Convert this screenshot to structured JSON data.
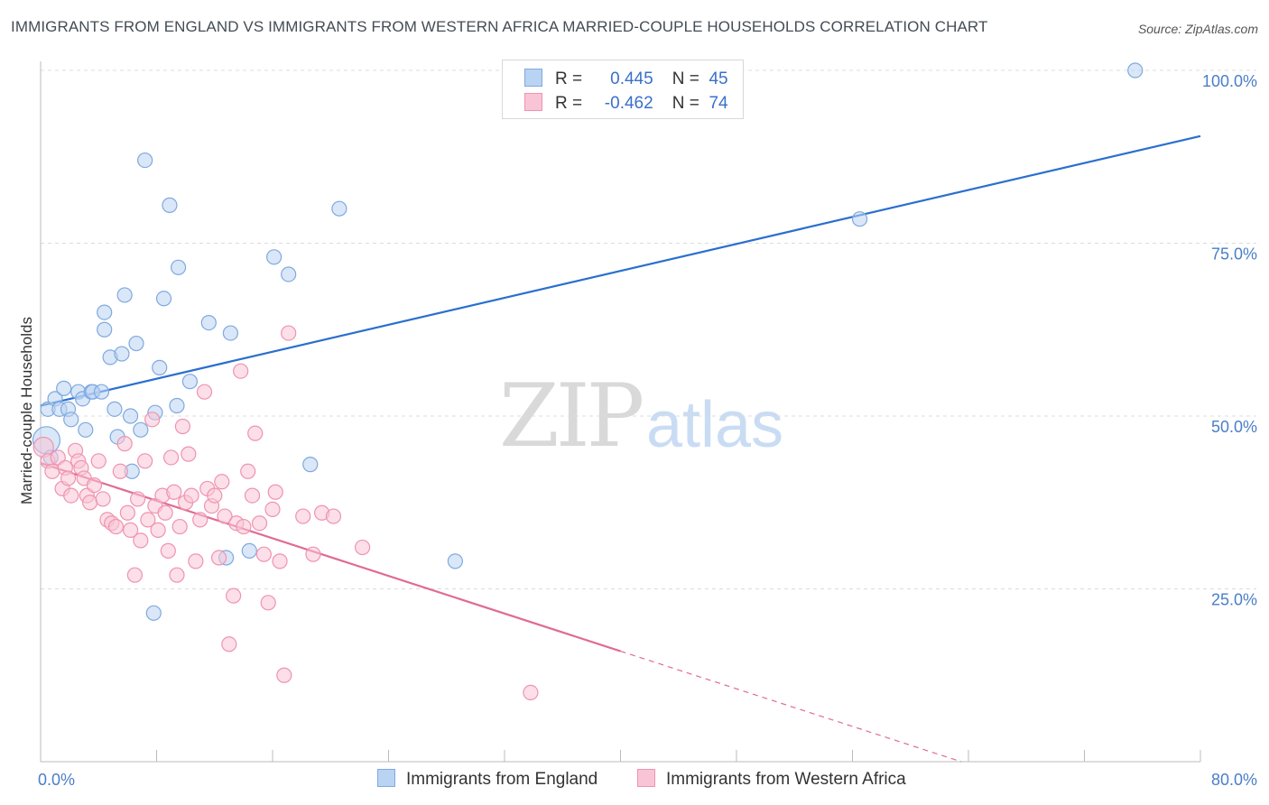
{
  "title": "IMMIGRANTS FROM ENGLAND VS IMMIGRANTS FROM WESTERN AFRICA MARRIED-COUPLE HOUSEHOLDS CORRELATION CHART",
  "source": "Source: ZipAtlas.com",
  "watermark": {
    "zip": "ZIP",
    "atlas": "atlas"
  },
  "legend": {
    "rows": [
      {
        "r_label": "R =",
        "r_value": "0.445",
        "n_label": "N =",
        "n_value": "45"
      },
      {
        "r_label": "R =",
        "r_value": "-0.462",
        "n_label": "N =",
        "n_value": "74"
      }
    ]
  },
  "colors": {
    "england_fill": "#b9d3f3",
    "england_stroke": "#7fa9df",
    "england_line": "#2a6fcf",
    "wafrica_fill": "#f9c5d6",
    "wafrica_stroke": "#ef93b0",
    "wafrica_line": "#e06b95",
    "grid": "#dcdcdc",
    "tick_text": "#4a7ec9"
  },
  "chart_data": {
    "type": "scatter",
    "title": "IMMIGRANTS FROM ENGLAND VS IMMIGRANTS FROM WESTERN AFRICA MARRIED-COUPLE HOUSEHOLDS CORRELATION CHART",
    "xlabel": "",
    "ylabel": "Married-couple Households",
    "xlim": [
      0,
      80
    ],
    "ylim": [
      0,
      102
    ],
    "x_tick_labels": [
      "0.0%",
      "80.0%"
    ],
    "y_ticks": [
      25,
      50,
      75,
      100
    ],
    "y_tick_labels": [
      "25.0%",
      "50.0%",
      "75.0%",
      "100.0%"
    ],
    "grid": true,
    "series": [
      {
        "name": "Immigrants from England",
        "r": 0.445,
        "n": 45,
        "trend": {
          "x0": 0,
          "y0": 51.5,
          "x1": 80,
          "y1": 90.5,
          "dashed_from": null
        },
        "points": [
          [
            0.4,
            46.5
          ],
          [
            0.5,
            51
          ],
          [
            0.7,
            44
          ],
          [
            1.0,
            52.5
          ],
          [
            1.3,
            51
          ],
          [
            1.6,
            54
          ],
          [
            1.9,
            51
          ],
          [
            2.1,
            49.5
          ],
          [
            2.6,
            53.5
          ],
          [
            2.9,
            52.5
          ],
          [
            3.1,
            48
          ],
          [
            3.5,
            53.5
          ],
          [
            3.6,
            53.5
          ],
          [
            4.2,
            53.5
          ],
          [
            4.4,
            65
          ],
          [
            4.4,
            62.5
          ],
          [
            4.8,
            58.5
          ],
          [
            5.1,
            51
          ],
          [
            5.3,
            47
          ],
          [
            5.6,
            59
          ],
          [
            5.8,
            67.5
          ],
          [
            6.2,
            50
          ],
          [
            6.3,
            42
          ],
          [
            6.6,
            60.5
          ],
          [
            6.9,
            48
          ],
          [
            7.2,
            87
          ],
          [
            7.8,
            21.5
          ],
          [
            7.9,
            50.5
          ],
          [
            8.2,
            57
          ],
          [
            8.5,
            67
          ],
          [
            8.9,
            80.5
          ],
          [
            9.4,
            51.5
          ],
          [
            9.5,
            71.5
          ],
          [
            10.3,
            55
          ],
          [
            11.6,
            63.5
          ],
          [
            12.8,
            29.5
          ],
          [
            13.1,
            62
          ],
          [
            14.4,
            30.5
          ],
          [
            16.1,
            73
          ],
          [
            17.1,
            70.5
          ],
          [
            18.6,
            43
          ],
          [
            20.6,
            80
          ],
          [
            28.6,
            29
          ],
          [
            56.5,
            78.5
          ],
          [
            75.5,
            100
          ]
        ]
      },
      {
        "name": "Immigrants from Western Africa",
        "r": -0.462,
        "n": 74,
        "trend": {
          "x0": 0,
          "y0": 43.2,
          "x1": 63.5,
          "y1": 0,
          "dashed_from": 40
        },
        "points": [
          [
            0.2,
            45.5
          ],
          [
            0.5,
            43.5
          ],
          [
            0.8,
            42
          ],
          [
            1.2,
            44
          ],
          [
            1.5,
            39.5
          ],
          [
            1.7,
            42.5
          ],
          [
            1.9,
            41
          ],
          [
            2.1,
            38.5
          ],
          [
            2.4,
            45
          ],
          [
            2.6,
            43.5
          ],
          [
            2.8,
            42.5
          ],
          [
            3.0,
            41
          ],
          [
            3.2,
            38.5
          ],
          [
            3.4,
            37.5
          ],
          [
            3.7,
            40
          ],
          [
            4.0,
            43.5
          ],
          [
            4.3,
            38
          ],
          [
            4.6,
            35
          ],
          [
            4.9,
            34.5
          ],
          [
            5.2,
            34
          ],
          [
            5.5,
            42
          ],
          [
            5.8,
            46
          ],
          [
            6.0,
            36
          ],
          [
            6.2,
            33.5
          ],
          [
            6.5,
            27
          ],
          [
            6.7,
            38
          ],
          [
            6.9,
            32
          ],
          [
            7.2,
            43.5
          ],
          [
            7.4,
            35
          ],
          [
            7.7,
            49.5
          ],
          [
            7.9,
            37
          ],
          [
            8.1,
            33.5
          ],
          [
            8.4,
            38.5
          ],
          [
            8.6,
            36
          ],
          [
            8.8,
            30.5
          ],
          [
            9.0,
            44
          ],
          [
            9.2,
            39
          ],
          [
            9.4,
            27
          ],
          [
            9.6,
            34
          ],
          [
            9.8,
            48.5
          ],
          [
            10.0,
            37.5
          ],
          [
            10.2,
            44.5
          ],
          [
            10.4,
            38.5
          ],
          [
            10.7,
            29
          ],
          [
            11.0,
            35
          ],
          [
            11.3,
            53.5
          ],
          [
            11.5,
            39.5
          ],
          [
            11.8,
            37
          ],
          [
            12.0,
            38.5
          ],
          [
            12.3,
            29.5
          ],
          [
            12.5,
            40.5
          ],
          [
            12.7,
            35.5
          ],
          [
            13.0,
            17
          ],
          [
            13.3,
            24
          ],
          [
            13.5,
            34.5
          ],
          [
            13.8,
            56.5
          ],
          [
            14.0,
            34
          ],
          [
            14.3,
            42
          ],
          [
            14.6,
            38.5
          ],
          [
            14.8,
            47.5
          ],
          [
            15.1,
            34.5
          ],
          [
            15.4,
            30
          ],
          [
            15.7,
            23
          ],
          [
            16.0,
            36.5
          ],
          [
            16.2,
            39
          ],
          [
            16.5,
            29
          ],
          [
            16.8,
            12.5
          ],
          [
            17.1,
            62
          ],
          [
            18.1,
            35.5
          ],
          [
            18.8,
            30
          ],
          [
            19.4,
            36
          ],
          [
            20.2,
            35.5
          ],
          [
            22.2,
            31
          ],
          [
            33.8,
            10
          ]
        ]
      }
    ]
  },
  "bottom_legend": [
    "Immigrants from England",
    "Immigrants from Western Africa"
  ]
}
